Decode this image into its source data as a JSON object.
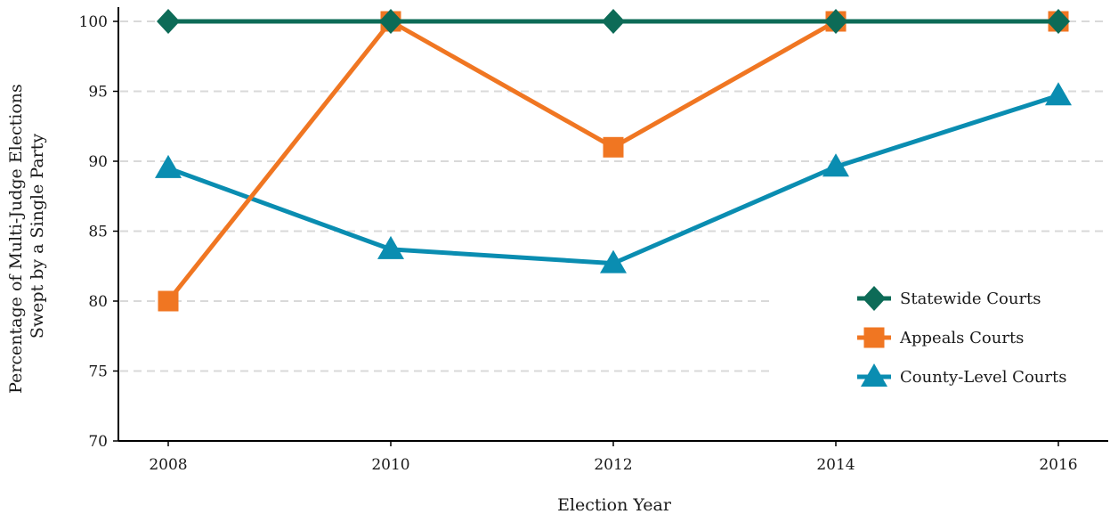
{
  "chart_data": {
    "type": "line",
    "title": "",
    "xlabel": "Election Year",
    "ylabel_lines": [
      "Percentage of Multi-Judge Elections",
      "Swept by a Single Party"
    ],
    "categories": [
      "2008",
      "2010",
      "2012",
      "2014",
      "2016"
    ],
    "x": [
      2008,
      2010,
      2012,
      2014,
      2016
    ],
    "ylim": [
      70,
      100
    ],
    "yticks": [
      70,
      75,
      80,
      85,
      90,
      95,
      100
    ],
    "grid": "horizontal dashed",
    "legend_position": "bottom-right",
    "series": [
      {
        "name": "Statewide Courts",
        "marker": "diamond",
        "color": "#0d6b57",
        "values": [
          100,
          100,
          100,
          100,
          100
        ]
      },
      {
        "name": "Appeals Courts",
        "marker": "square",
        "color": "#f07622",
        "values": [
          80,
          100,
          91,
          100,
          100
        ]
      },
      {
        "name": "County-Level Courts",
        "marker": "triangle",
        "color": "#0a8db1",
        "values": [
          89.5,
          83.7,
          82.7,
          89.6,
          94.7
        ]
      }
    ]
  }
}
